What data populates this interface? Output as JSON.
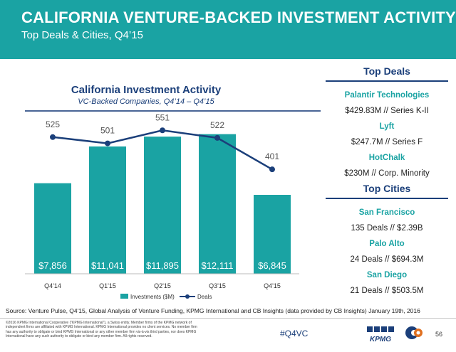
{
  "header": {
    "title": "CALIFORNIA VENTURE-BACKED INVESTMENT ACTIVITY",
    "subtitle": "Top Deals & Cities, Q4’15"
  },
  "chart_data": {
    "type": "bar",
    "title": "California Investment Activity",
    "subtitle": "VC-Backed Companies, Q4’14 – Q4’15",
    "categories": [
      "Q4'14",
      "Q1'15",
      "Q2'15",
      "Q3'15",
      "Q4'15"
    ],
    "series": [
      {
        "name": "Investments ($M)",
        "type": "bar",
        "values": [
          7856,
          11041,
          11895,
          12111,
          6845
        ],
        "labels": [
          "$7,856",
          "$11,041",
          "$11,895",
          "$12,111",
          "$6,845"
        ],
        "color": "#1aa3a3"
      },
      {
        "name": "Deals",
        "type": "line",
        "values": [
          525,
          501,
          551,
          522,
          401
        ],
        "labels": [
          "525",
          "501",
          "551",
          "522",
          "401"
        ],
        "color": "#1b3f7a"
      }
    ],
    "bar_ylim": [
      0,
      14000
    ],
    "line_ylim": [
      0,
      620
    ],
    "legend_position": "bottom",
    "grid": false
  },
  "top_deals": {
    "heading": "Top Deals",
    "items": [
      {
        "name": "Palantir Technologies",
        "value": "$429.83M // Series K-II"
      },
      {
        "name": "Lyft",
        "value": "$247.7M // Series F"
      },
      {
        "name": "HotChalk",
        "value": "$230M // Corp. Minority"
      }
    ]
  },
  "top_cities": {
    "heading": "Top Cities",
    "items": [
      {
        "name": "San Francisco",
        "value": "135 Deals // $2.39B"
      },
      {
        "name": "Palo Alto",
        "value": "24 Deals // $694.3M"
      },
      {
        "name": "San Diego",
        "value": "21 Deals // $503.5M"
      }
    ]
  },
  "footer": {
    "source": "Source: Venture Pulse, Q4'15, Global Analysis of Venture Funding, KPMG International and CB Insights (data provided by CB Insights) January 19th, 2016",
    "legal": "©2016 KPMG International Cooperative (\"KPMG International\"), a Swiss entity. Member firms of the KPMG network of independent firms are affiliated with KPMG International. KPMG International provides no client services. No member firm has any authority to obligate or bind KPMG International or any other member firm vis-à-vis third parties, nor does KPMG International have any such authority to obligate or bind any member firm. All rights reserved.",
    "hashtag": "#Q4VC",
    "logo_text": "KPMG",
    "page_number": "56"
  }
}
